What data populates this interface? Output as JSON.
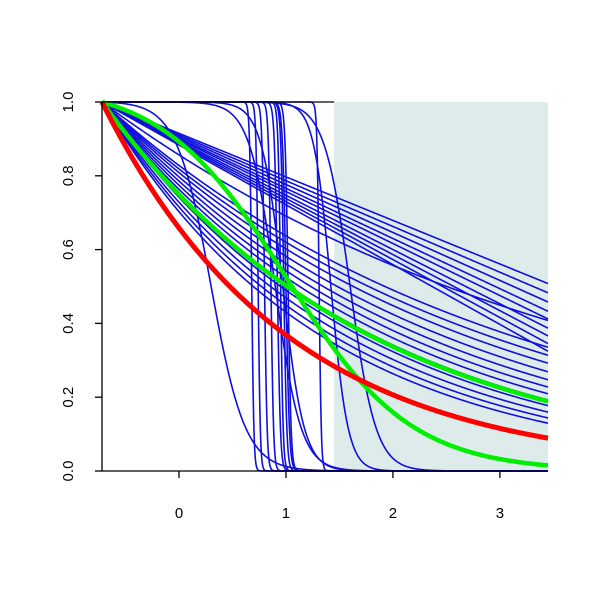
{
  "chart_data": {
    "type": "line",
    "title": "",
    "xlabel": "",
    "ylabel": "",
    "xlim": [
      -0.72,
      3.45
    ],
    "ylim": [
      0.0,
      1.0
    ],
    "x_ticks": [
      0,
      1,
      2,
      3
    ],
    "x_tick_labels": [
      "0",
      "1",
      "2",
      "3"
    ],
    "y_ticks": [
      0.0,
      0.2,
      0.4,
      0.6,
      0.8,
      1.0
    ],
    "y_tick_labels": [
      "0.0",
      "0.2",
      "0.4",
      "0.6",
      "0.8",
      "1.0"
    ],
    "grid": false,
    "legend": "none",
    "colors": {
      "blue": "#1010dd",
      "red": "#ff0000",
      "green": "#00ee00",
      "shade": "#deebeb",
      "axis": "#000000"
    },
    "shaded_region": {
      "x": [
        1.45,
        3.45
      ],
      "y": [
        0.0,
        1.0
      ]
    },
    "top_line": {
      "x": [
        -0.72,
        1.45
      ],
      "y": 1.0
    },
    "x_origin": -0.72,
    "series": [
      {
        "color": "blue",
        "kind": "linear",
        "slope": 0.118
      },
      {
        "color": "blue",
        "kind": "linear",
        "slope": 0.124
      },
      {
        "color": "blue",
        "kind": "linear",
        "slope": 0.13
      },
      {
        "color": "blue",
        "kind": "linear",
        "slope": 0.136
      },
      {
        "color": "blue",
        "kind": "linear",
        "slope": 0.141
      },
      {
        "color": "blue",
        "kind": "linear",
        "slope": 0.147
      },
      {
        "color": "blue",
        "kind": "linear",
        "slope": 0.152
      },
      {
        "color": "blue",
        "kind": "linear",
        "slope": 0.157
      },
      {
        "color": "blue",
        "kind": "linear",
        "slope": 0.162
      },
      {
        "color": "blue",
        "kind": "exp",
        "rate": 0.215
      },
      {
        "color": "blue",
        "kind": "exp",
        "rate": 0.262
      },
      {
        "color": "blue",
        "kind": "exp",
        "rate": 0.278
      },
      {
        "color": "blue",
        "kind": "exp",
        "rate": 0.295
      },
      {
        "color": "blue",
        "kind": "exp",
        "rate": 0.315
      },
      {
        "color": "blue",
        "kind": "exp",
        "rate": 0.335
      },
      {
        "color": "blue",
        "kind": "exp",
        "rate": 0.355
      },
      {
        "color": "blue",
        "kind": "exp",
        "rate": 0.375
      },
      {
        "color": "blue",
        "kind": "exp",
        "rate": 0.395
      },
      {
        "color": "blue",
        "kind": "exp",
        "rate": 0.415
      },
      {
        "color": "blue",
        "kind": "exp",
        "rate": 0.44
      },
      {
        "color": "blue",
        "kind": "exp",
        "rate": 0.465
      },
      {
        "color": "blue",
        "kind": "exp",
        "rate": 0.49
      },
      {
        "color": "blue",
        "kind": "logistic",
        "mid": 0.3,
        "scale": 0.16
      },
      {
        "color": "blue",
        "kind": "logistic",
        "mid": 0.68,
        "scale": 0.01
      },
      {
        "color": "blue",
        "kind": "logistic",
        "mid": 0.74,
        "scale": 0.01
      },
      {
        "color": "blue",
        "kind": "logistic",
        "mid": 0.8,
        "scale": 0.012
      },
      {
        "color": "blue",
        "kind": "logistic",
        "mid": 0.86,
        "scale": 0.012
      },
      {
        "color": "blue",
        "kind": "logistic",
        "mid": 0.92,
        "scale": 0.014
      },
      {
        "color": "blue",
        "kind": "logistic",
        "mid": 0.95,
        "scale": 0.012
      },
      {
        "color": "blue",
        "kind": "logistic",
        "mid": 0.98,
        "scale": 0.014
      },
      {
        "color": "blue",
        "kind": "logistic",
        "mid": 1.0,
        "scale": 0.016
      },
      {
        "color": "blue",
        "kind": "logistic",
        "mid": 1.02,
        "scale": 0.014
      },
      {
        "color": "blue",
        "kind": "logistic",
        "mid": 1.31,
        "scale": 0.01
      },
      {
        "color": "blue",
        "kind": "logistic",
        "mid": 0.9,
        "scale": 0.12
      },
      {
        "color": "blue",
        "kind": "logistic",
        "mid": 0.97,
        "scale": 0.1
      },
      {
        "color": "blue",
        "kind": "logistic",
        "mid": 1.42,
        "scale": 0.08
      },
      {
        "color": "blue",
        "kind": "logistic",
        "mid": 1.6,
        "scale": 0.12
      },
      {
        "color": "green",
        "kind": "exp",
        "rate": 0.4,
        "width": 4.5
      },
      {
        "color": "green",
        "kind": "logistic",
        "mid": 1.0,
        "scale": 0.58,
        "width": 4.5
      },
      {
        "color": "red",
        "kind": "exp",
        "rate": 0.58,
        "width": 5
      }
    ]
  }
}
